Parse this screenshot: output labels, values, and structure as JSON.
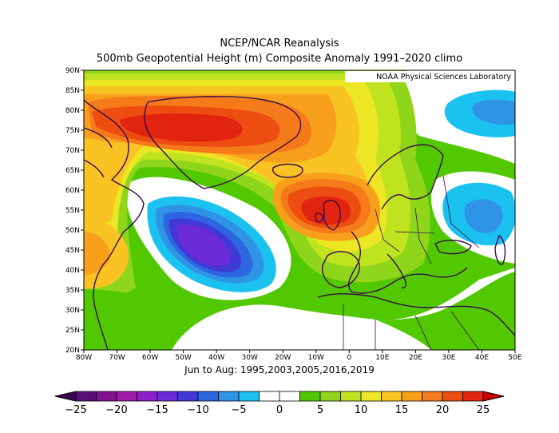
{
  "title_line1": "NCEP/NCAR Reanalysis",
  "title_line2": "500mb Geopotential Height (m) Composite Anomaly 1991–2020 climo",
  "credit": "NOAA Physical Sciences Laboratory",
  "caption": "Jun to Aug: 1995,2003,2005,2016,2019",
  "lat_labels": [
    "90N",
    "85N",
    "80N",
    "75N",
    "70N",
    "65N",
    "60N",
    "55N",
    "50N",
    "45N",
    "40N",
    "35N",
    "30N",
    "25N",
    "20N"
  ],
  "lon_labels": [
    "80W",
    "70W",
    "60W",
    "50W",
    "40W",
    "30W",
    "20W",
    "10W",
    "0",
    "10E",
    "20E",
    "30E",
    "40E",
    "50E"
  ],
  "colorbar": {
    "labels": [
      "−25",
      "−20",
      "−15",
      "−10",
      "−5",
      "0",
      "5",
      "10",
      "15",
      "20",
      "25"
    ],
    "colors": [
      "#5a0f78",
      "#80128f",
      "#a21aaa",
      "#8c1fc9",
      "#6a2ad8",
      "#4039d8",
      "#2d66e0",
      "#2f93e6",
      "#1cc2ef",
      "#ffffff",
      "#ffffff",
      "#52c800",
      "#8fd61a",
      "#c0e31f",
      "#ede624",
      "#f9c324",
      "#f8a01c",
      "#f47a1a",
      "#ee4d12",
      "#e12410"
    ]
  },
  "map": {
    "lat_range": [
      "20N",
      "90N"
    ],
    "lon_range": [
      "80W",
      "50E"
    ],
    "anomaly_centers": [
      {
        "type": "positive",
        "location": "Greenland",
        "approx_value": 20
      },
      {
        "type": "positive",
        "location": "British Isles / North Sea",
        "approx_value": 22
      },
      {
        "type": "negative",
        "location": "North Atlantic off Newfoundland",
        "approx_value": -15
      },
      {
        "type": "negative",
        "location": "Western Russia",
        "approx_value": -5
      },
      {
        "type": "negative",
        "location": "Barents Sea",
        "approx_value": -5
      }
    ]
  }
}
